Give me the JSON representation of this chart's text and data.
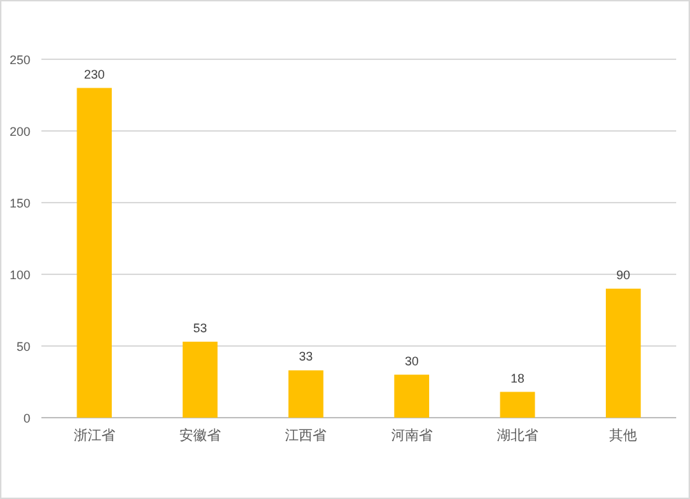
{
  "chart_data": {
    "type": "bar",
    "categories": [
      "浙江省",
      "安徽省",
      "江西省",
      "河南省",
      "湖北省",
      "其他"
    ],
    "values": [
      230,
      53,
      33,
      30,
      18,
      90
    ],
    "color": "#ffc000",
    "ylim": [
      0,
      250
    ],
    "yticks": [
      0,
      50,
      100,
      150,
      200,
      250
    ],
    "grid": "y",
    "data_labels": true
  }
}
